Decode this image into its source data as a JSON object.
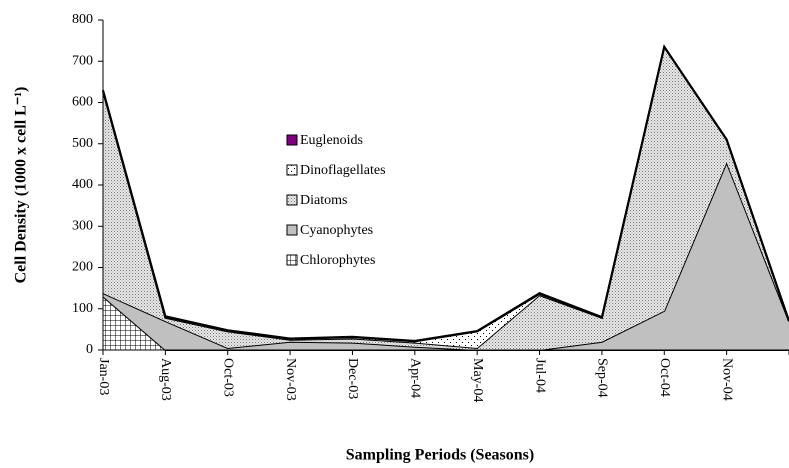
{
  "chart_data": {
    "type": "stacked-area",
    "xlabel": "Sampling Periods (Seasons)",
    "ylabel": "Cell Density (1000 x cell L⁻¹)",
    "categories": [
      "Jan-03",
      "Aug-03",
      "Oct-03",
      "Nov-03",
      "Dec-03",
      "Apr-04",
      "May-04",
      "Jul-04",
      "Sep-04",
      "Oct-04",
      "Nov-04",
      null
    ],
    "series": [
      {
        "name": "Chlorophytes",
        "color": "#ffffff",
        "values": [
          130,
          0,
          0,
          0,
          0,
          0,
          0,
          0,
          0,
          0,
          0,
          0
        ]
      },
      {
        "name": "Cyanophytes",
        "color": "#c0c0c0",
        "values": [
          8,
          70,
          5,
          20,
          18,
          8,
          0,
          0,
          20,
          95,
          455,
          70
        ]
      },
      {
        "name": "Diatoms",
        "color": "#d4d4d4",
        "values": [
          490,
          8,
          40,
          5,
          10,
          10,
          5,
          133,
          58,
          640,
          55,
          0
        ]
      },
      {
        "name": "Dinoflagellates",
        "color": "#ffffff",
        "values": [
          0,
          2,
          2,
          2,
          3,
          3,
          40,
          3,
          1,
          0,
          0,
          0
        ]
      },
      {
        "name": "Euglenoids",
        "color": "#800080",
        "values": [
          2,
          2,
          1,
          1,
          1,
          1,
          1,
          2,
          1,
          0,
          0,
          0
        ]
      }
    ],
    "ylim": [
      0,
      800
    ],
    "yticks": [
      0,
      100,
      200,
      300,
      400,
      500,
      600,
      700,
      800
    ],
    "legend": "center"
  }
}
